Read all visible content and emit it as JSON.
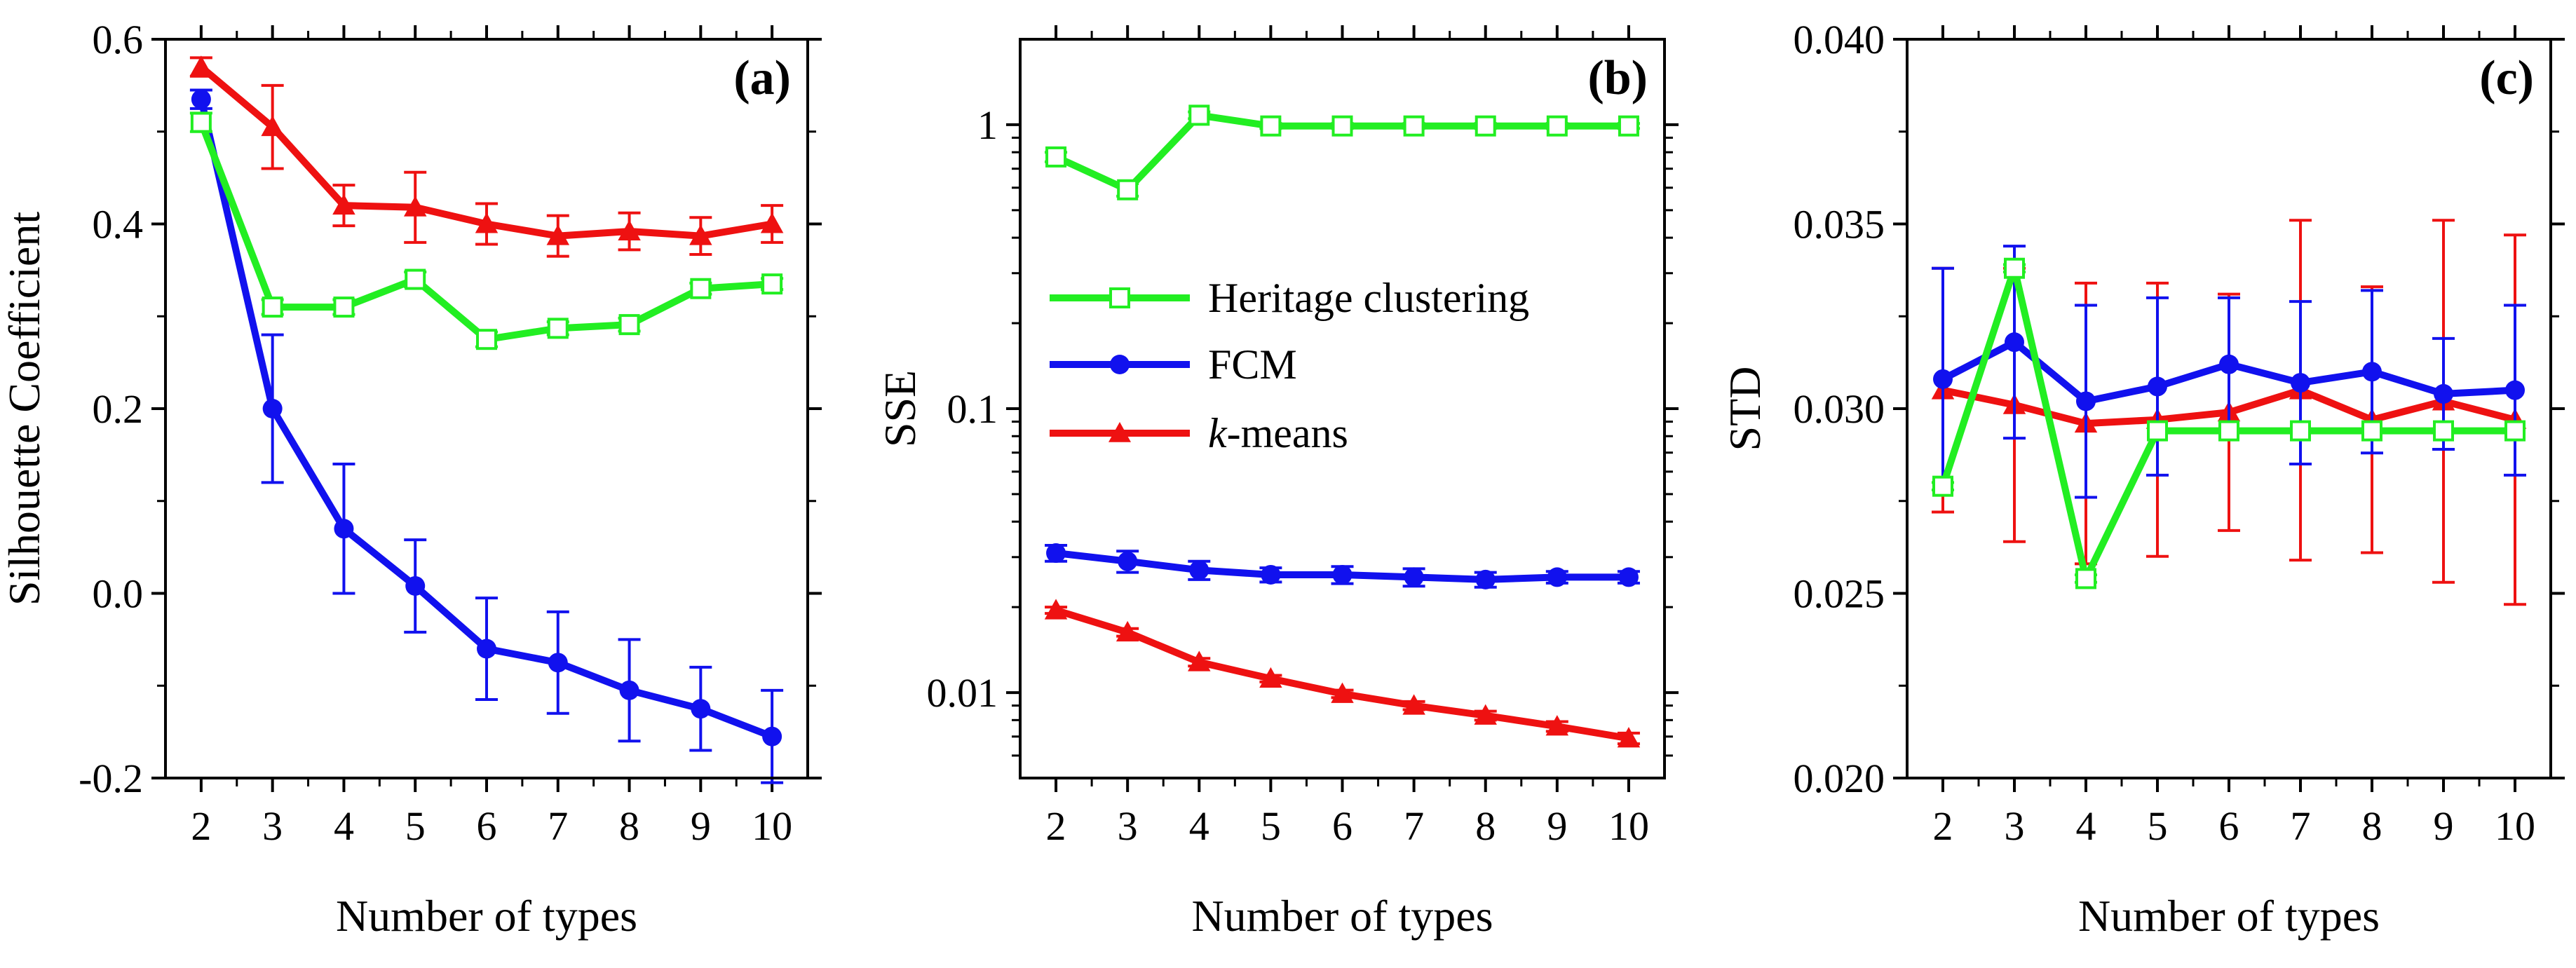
{
  "colors": {
    "heritage": "#22ee22",
    "fcm": "#1111ee",
    "kmeans": "#ee1111"
  },
  "legend": {
    "items": [
      {
        "key": "heritage",
        "label": "Heritage clustering",
        "marker": "square-open"
      },
      {
        "key": "fcm",
        "label": "FCM",
        "marker": "circle"
      },
      {
        "key": "kmeans",
        "label_prefix": "k",
        "label_suffix": "-means",
        "marker": "triangle"
      }
    ]
  },
  "chart_data": [
    {
      "id": "a",
      "type": "line",
      "panel_label": "(a)",
      "xlabel": "Number of types",
      "ylabel": "Silhouette Coefficient",
      "yscale": "linear",
      "xlim": [
        1.5,
        10.5
      ],
      "ylim": [
        -0.2,
        0.6
      ],
      "x": [
        2,
        3,
        4,
        5,
        6,
        7,
        8,
        9,
        10
      ],
      "xticks": [
        "2",
        "3",
        "4",
        "5",
        "6",
        "7",
        "8",
        "9",
        "10"
      ],
      "yticks": [
        -0.2,
        0.0,
        0.2,
        0.4,
        0.6
      ],
      "ytick_labels": [
        "-0.2",
        "0.0",
        "0.2",
        "0.4",
        "0.6"
      ],
      "series": [
        {
          "key": "heritage",
          "name": "Heritage clustering",
          "values": [
            0.51,
            0.31,
            0.31,
            0.34,
            0.275,
            0.287,
            0.291,
            0.33,
            0.335
          ],
          "errors": [
            0.01,
            0.008,
            0.008,
            0.008,
            0.008,
            0.007,
            0.007,
            0.006,
            0.006
          ]
        },
        {
          "key": "fcm",
          "name": "FCM",
          "values": [
            0.535,
            0.2,
            0.07,
            0.008,
            -0.06,
            -0.075,
            -0.105,
            -0.125,
            -0.155
          ],
          "errors": [
            0.01,
            0.08,
            0.07,
            0.05,
            0.055,
            0.055,
            0.055,
            0.045,
            0.05
          ]
        },
        {
          "key": "kmeans",
          "name": "k-means",
          "values": [
            0.57,
            0.505,
            0.42,
            0.418,
            0.4,
            0.387,
            0.392,
            0.387,
            0.4
          ],
          "errors": [
            0.01,
            0.045,
            0.022,
            0.038,
            0.022,
            0.022,
            0.02,
            0.02,
            0.02
          ]
        }
      ]
    },
    {
      "id": "b",
      "type": "line",
      "panel_label": "(b)",
      "xlabel": "Number of types",
      "ylabel": "SSE",
      "yscale": "log",
      "xlim": [
        1.5,
        10.5
      ],
      "ylim": [
        0.005,
        2.0
      ],
      "x": [
        2,
        3,
        4,
        5,
        6,
        7,
        8,
        9,
        10
      ],
      "xticks": [
        "2",
        "3",
        "4",
        "5",
        "6",
        "7",
        "8",
        "9",
        "10"
      ],
      "yticks": [
        0.01,
        0.1,
        1
      ],
      "ytick_labels": [
        "0.01",
        "0.1",
        "1"
      ],
      "series": [
        {
          "key": "heritage",
          "name": "Heritage clustering",
          "values": [
            0.77,
            0.59,
            1.08,
            0.99,
            0.99,
            0.99,
            0.99,
            0.99,
            0.99
          ],
          "errors": [
            0.03,
            0.03,
            0.03,
            0.02,
            0.02,
            0.02,
            0.02,
            0.02,
            0.02
          ]
        },
        {
          "key": "fcm",
          "name": "FCM",
          "values": [
            0.031,
            0.029,
            0.027,
            0.026,
            0.026,
            0.0255,
            0.025,
            0.0255,
            0.0255
          ],
          "errors": [
            0.002,
            0.0025,
            0.002,
            0.0015,
            0.0018,
            0.0018,
            0.0015,
            0.0012,
            0.0012
          ]
        },
        {
          "key": "kmeans",
          "name": "k-means",
          "values": [
            0.0195,
            0.0163,
            0.0128,
            0.0112,
            0.0099,
            0.009,
            0.0083,
            0.0076,
            0.0069
          ],
          "errors": [
            0.0005,
            0.0005,
            0.0004,
            0.0003,
            0.0003,
            0.0003,
            0.0003,
            0.0003,
            0.0003
          ]
        }
      ]
    },
    {
      "id": "c",
      "type": "line",
      "panel_label": "(c)",
      "xlabel": "Number of types",
      "ylabel": "STD",
      "yscale": "linear",
      "xlim": [
        1.5,
        10.5
      ],
      "ylim": [
        0.02,
        0.04
      ],
      "x": [
        2,
        3,
        4,
        5,
        6,
        7,
        8,
        9,
        10
      ],
      "xticks": [
        "2",
        "3",
        "4",
        "5",
        "6",
        "7",
        "8",
        "9",
        "10"
      ],
      "yticks": [
        0.02,
        0.025,
        0.03,
        0.035,
        0.04
      ],
      "ytick_labels": [
        "0.020",
        "0.025",
        "0.030",
        "0.035",
        "0.040"
      ],
      "series": [
        {
          "key": "heritage",
          "name": "Heritage clustering",
          "values": [
            0.0279,
            0.0338,
            0.0254,
            0.0294,
            0.0294,
            0.0294,
            0.0294,
            0.0294,
            0.0294
          ],
          "errors": [
            0.0001,
            0.0001,
            0.0001,
            0.0,
            0.0,
            0.0,
            0.0,
            0.0,
            0.0
          ]
        },
        {
          "key": "fcm",
          "name": "FCM",
          "values": [
            0.0308,
            0.0318,
            0.0302,
            0.0306,
            0.0312,
            0.0307,
            0.031,
            0.0304,
            0.0305
          ],
          "errors": [
            0.003,
            0.0026,
            0.0026,
            0.0024,
            0.0018,
            0.0022,
            0.0022,
            0.0015,
            0.0023
          ]
        },
        {
          "key": "kmeans",
          "name": "k-means",
          "values": [
            0.0305,
            0.0301,
            0.0296,
            0.0297,
            0.0299,
            0.0305,
            0.0297,
            0.0302,
            0.0297
          ],
          "errors": [
            0.0033,
            0.0037,
            0.0038,
            0.0037,
            0.0032,
            0.0046,
            0.0036,
            0.0049,
            0.005
          ]
        }
      ]
    }
  ]
}
